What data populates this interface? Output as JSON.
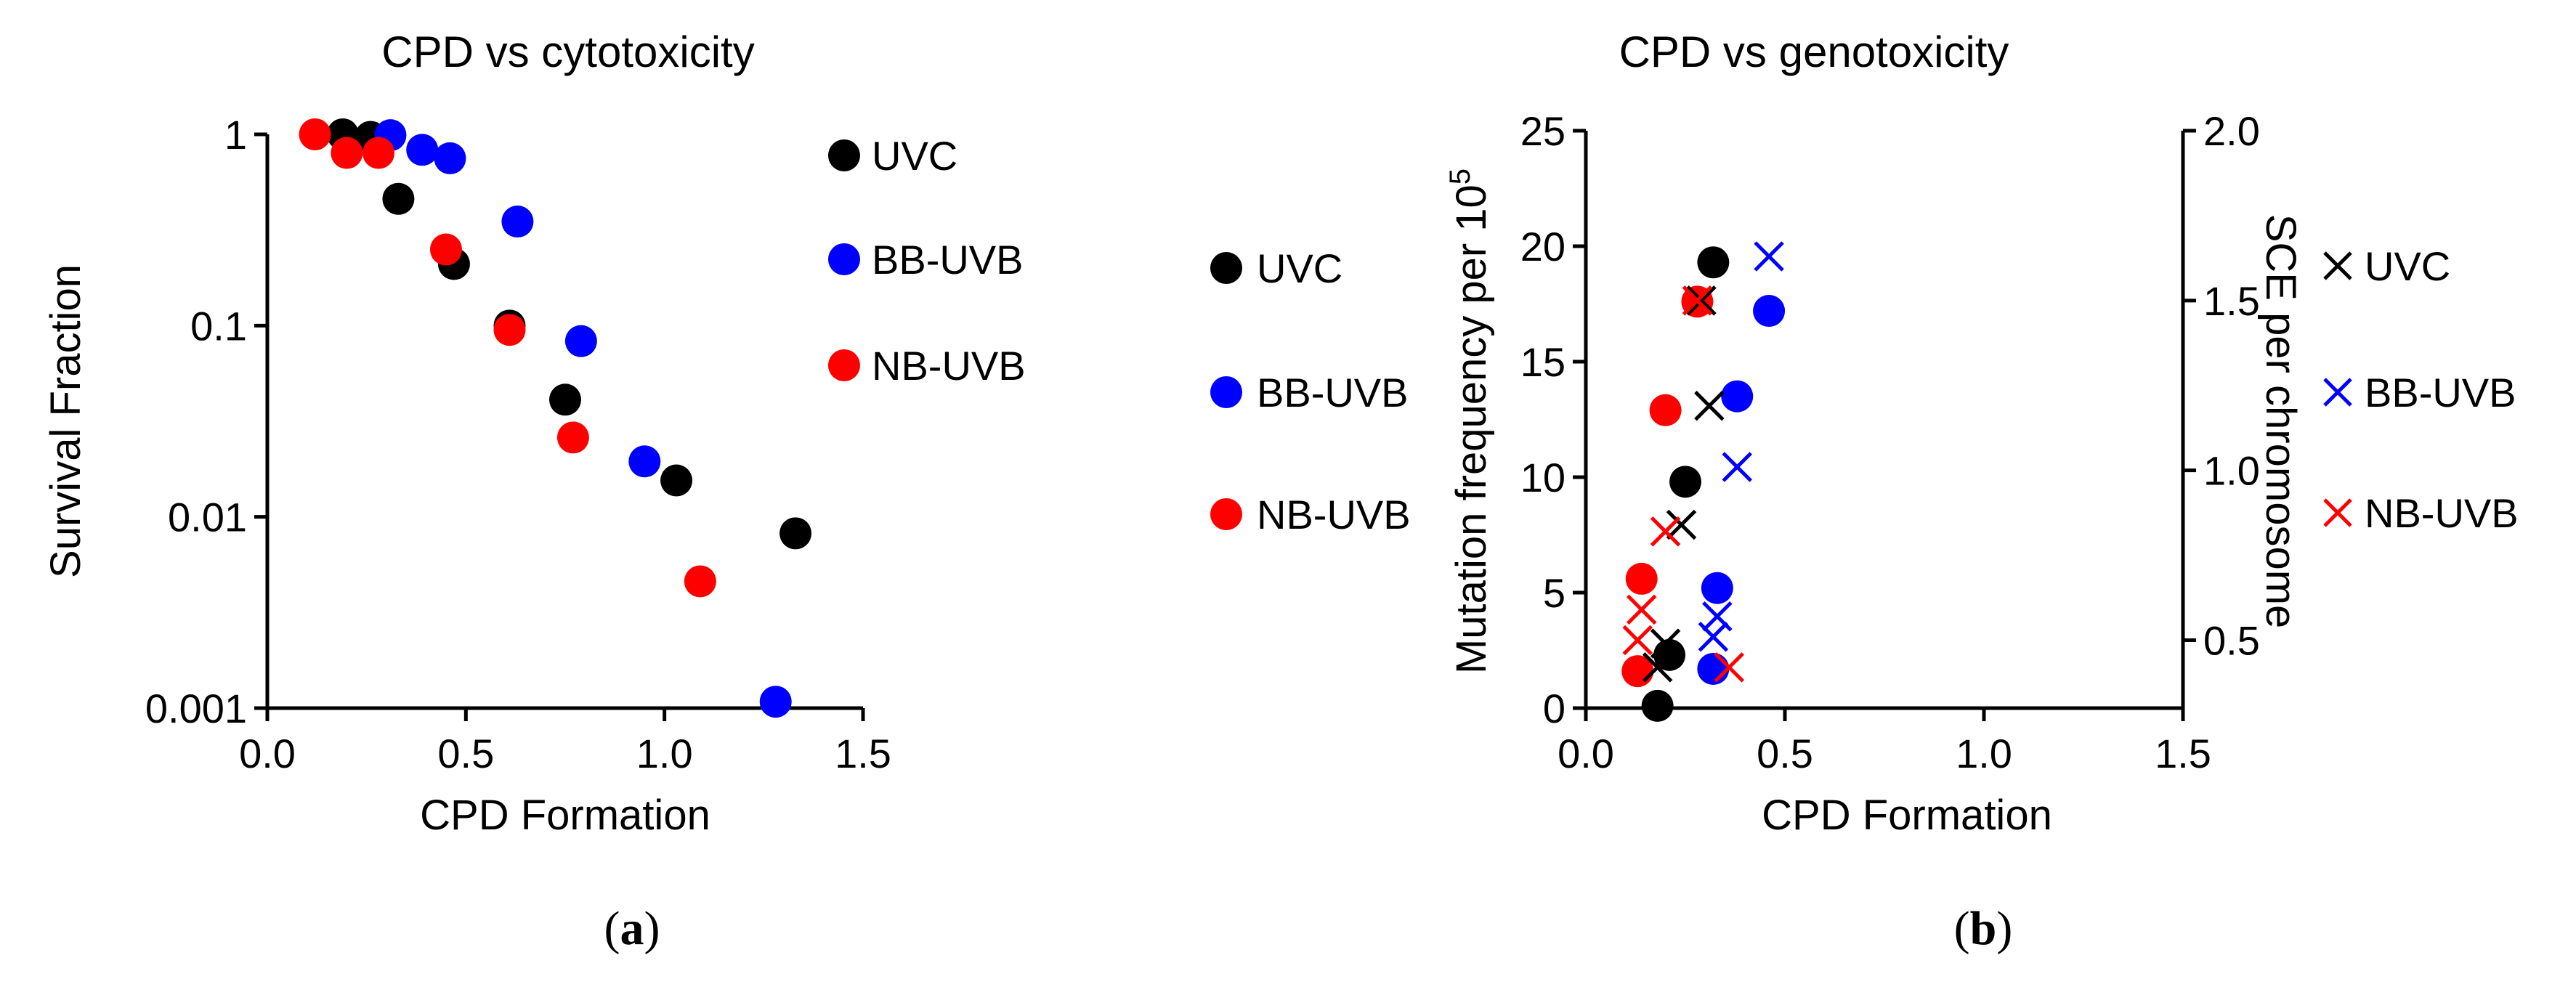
{
  "chart_data": [
    {
      "id": "a",
      "type": "scatter",
      "title": "CPD vs cytotoxicity",
      "xlabel": "CPD Formation",
      "ylabel": "Survival Fraction",
      "xlim": [
        0.0,
        1.5
      ],
      "yscale": "log",
      "ylim": [
        0.001,
        1
      ],
      "xticks": [
        0.0,
        0.5,
        1.0,
        1.5
      ],
      "xtick_labels": [
        "0.0",
        "0.5",
        "1.0",
        "1.5"
      ],
      "yticks": [
        0.001,
        0.01,
        0.1,
        1
      ],
      "ytick_labels": [
        "0.001",
        "0.01",
        "0.1",
        "1"
      ],
      "legend_position": "top-right",
      "series": [
        {
          "name": "UVC",
          "marker": "circle",
          "color": "#000000",
          "points": [
            [
              0.19,
              1.0
            ],
            [
              0.26,
              0.97
            ],
            [
              0.33,
              0.46
            ],
            [
              0.47,
              0.21
            ],
            [
              0.61,
              0.1
            ],
            [
              0.75,
              0.041
            ],
            [
              1.03,
              0.0155
            ],
            [
              1.33,
              0.0082
            ]
          ]
        },
        {
          "name": "BB-UVB",
          "marker": "circle",
          "color": "#0000ff",
          "points": [
            [
              0.31,
              0.99
            ],
            [
              0.39,
              0.83
            ],
            [
              0.46,
              0.75
            ],
            [
              0.63,
              0.35
            ],
            [
              0.79,
              0.083
            ],
            [
              0.95,
              0.0195
            ],
            [
              1.28,
              0.00108
            ]
          ]
        },
        {
          "name": "NB-UVB",
          "marker": "circle",
          "color": "#ff0000",
          "points": [
            [
              0.12,
              1.0
            ],
            [
              0.2,
              0.8
            ],
            [
              0.28,
              0.8
            ],
            [
              0.45,
              0.25
            ],
            [
              0.61,
              0.095
            ],
            [
              0.77,
              0.026
            ],
            [
              1.09,
              0.0046
            ]
          ]
        }
      ]
    },
    {
      "id": "b",
      "type": "scatter",
      "title": "CPD vs genotoxicity",
      "xlabel": "CPD Formation",
      "ylabel": "Mutation frequency per 10",
      "ylabel_superscript": "5",
      "y2label": "SCE per chromosome",
      "xlim": [
        0.0,
        1.5
      ],
      "ylim": [
        0,
        25
      ],
      "y2lim": [
        0.3,
        2.0
      ],
      "xticks": [
        0.0,
        0.5,
        1.0,
        1.5
      ],
      "xtick_labels": [
        "0.0",
        "0.5",
        "1.0",
        "1.5"
      ],
      "yticks": [
        0,
        5,
        10,
        15,
        20,
        25
      ],
      "ytick_labels": [
        "0",
        "5",
        "10",
        "15",
        "20",
        "25"
      ],
      "y2ticks": [
        0.5,
        1.0,
        1.5,
        2.0
      ],
      "y2tick_labels": [
        "0.5",
        "1.0",
        "1.5",
        "2.0"
      ],
      "legend_position": "right",
      "series": [
        {
          "name": "UVC",
          "marker": "circle",
          "axis": "left",
          "color": "#000000",
          "points": [
            [
              0.18,
              0.1
            ],
            [
              0.21,
              2.3
            ],
            [
              0.25,
              9.8
            ],
            [
              0.32,
              19.3
            ]
          ]
        },
        {
          "name": "BB-UVB",
          "marker": "circle",
          "axis": "left",
          "color": "#0000ff",
          "points": [
            [
              0.32,
              1.7
            ],
            [
              0.33,
              5.2
            ],
            [
              0.38,
              13.5
            ],
            [
              0.46,
              17.2
            ]
          ]
        },
        {
          "name": "NB-UVB",
          "marker": "circle",
          "axis": "left",
          "color": "#ff0000",
          "points": [
            [
              0.13,
              1.6
            ],
            [
              0.14,
              5.6
            ],
            [
              0.2,
              12.9
            ],
            [
              0.28,
              17.6
            ]
          ]
        },
        {
          "name": "UVC",
          "marker": "cross",
          "axis": "right",
          "color": "#000000",
          "points": [
            [
              0.18,
              0.42
            ],
            [
              0.2,
              0.49
            ],
            [
              0.24,
              0.84
            ],
            [
              0.31,
              1.19
            ],
            [
              0.29,
              1.5
            ]
          ]
        },
        {
          "name": "BB-UVB",
          "marker": "cross",
          "axis": "right",
          "color": "#0000ff",
          "points": [
            [
              0.32,
              0.51
            ],
            [
              0.33,
              0.57
            ],
            [
              0.38,
              1.01
            ],
            [
              0.46,
              1.63
            ]
          ]
        },
        {
          "name": "NB-UVB",
          "marker": "cross",
          "axis": "right",
          "color": "#ff0000",
          "points": [
            [
              0.13,
              0.5
            ],
            [
              0.14,
              0.59
            ],
            [
              0.2,
              0.82
            ],
            [
              0.28,
              1.5
            ],
            [
              0.36,
              0.42
            ]
          ]
        }
      ]
    }
  ],
  "legend_a": {
    "items": [
      "UVC",
      "BB-UVB",
      "NB-UVB"
    ]
  },
  "legend_b_circles": {
    "items": [
      "UVC",
      "BB-UVB",
      "NB-UVB"
    ]
  },
  "legend_b_crosses": {
    "items": [
      "UVC",
      "BB-UVB",
      "NB-UVB"
    ]
  },
  "captions": {
    "a_open": "(",
    "a_letter": "a",
    "a_close": ")",
    "b_open": "(",
    "b_letter": "b",
    "b_close": ")"
  }
}
